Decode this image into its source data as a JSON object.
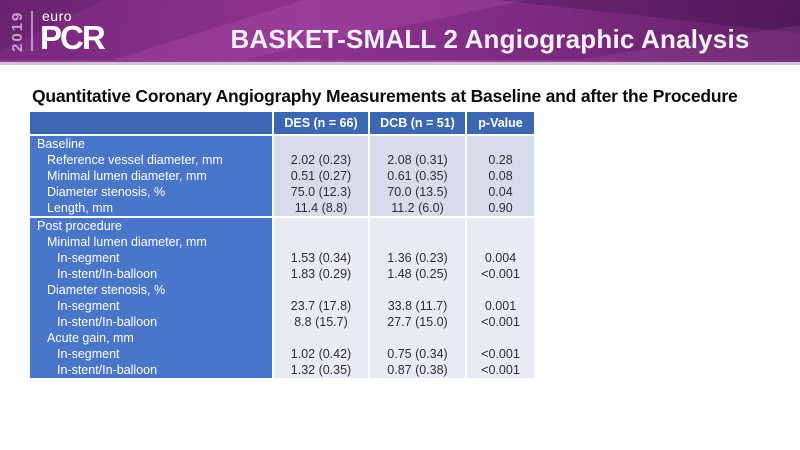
{
  "banner": {
    "year": "2019",
    "logo_top": "euro",
    "logo_main": "PCR",
    "title": "BASKET-SMALL 2 Angiographic Analysis"
  },
  "subtitle": "Quantitative Coronary Angiography Measurements at Baseline and after the Procedure",
  "colors": {
    "banner_purple": "#7c2b81",
    "banner_dark_purple": "#5f1f64",
    "header_blue": "#3c68b2",
    "label_column_blue": "#4976c9",
    "band_baseline": "#d8dbea",
    "band_post": "#e9ebf4"
  },
  "table": {
    "columns": [
      "",
      "DES (n = 66)",
      "DCB (n = 51)",
      "p-Value"
    ],
    "rows": [
      {
        "label": "Baseline",
        "indent": 0,
        "band": "a",
        "divider": false,
        "values": [
          "",
          "",
          ""
        ]
      },
      {
        "label": "Reference vessel diameter, mm",
        "indent": 1,
        "band": "a",
        "divider": false,
        "values": [
          "2.02 (0.23)",
          "2.08 (0.31)",
          "0.28"
        ]
      },
      {
        "label": "Minimal lumen diameter, mm",
        "indent": 1,
        "band": "a",
        "divider": false,
        "values": [
          "0.51 (0.27)",
          "0.61 (0.35)",
          "0.08"
        ]
      },
      {
        "label": "Diameter stenosis, %",
        "indent": 1,
        "band": "a",
        "divider": false,
        "values": [
          "75.0 (12.3)",
          "70.0 (13.5)",
          "0.04"
        ]
      },
      {
        "label": "Length, mm",
        "indent": 1,
        "band": "a",
        "divider": false,
        "values": [
          "11.4 (8.8)",
          "11.2 (6.0)",
          "0.90"
        ]
      },
      {
        "label": "Post procedure",
        "indent": 0,
        "band": "b",
        "divider": true,
        "values": [
          "",
          "",
          ""
        ]
      },
      {
        "label": "Minimal lumen diameter, mm",
        "indent": 1,
        "band": "b",
        "divider": false,
        "values": [
          "",
          "",
          ""
        ]
      },
      {
        "label": "In-segment",
        "indent": 2,
        "band": "b",
        "divider": false,
        "values": [
          "1.53 (0.34)",
          "1.36 (0.23)",
          "0.004"
        ]
      },
      {
        "label": "In-stent/In-balloon",
        "indent": 2,
        "band": "b",
        "divider": false,
        "values": [
          "1.83 (0.29)",
          "1.48 (0.25)",
          "<0.001"
        ]
      },
      {
        "label": "Diameter stenosis, %",
        "indent": 1,
        "band": "b",
        "divider": false,
        "values": [
          "",
          "",
          ""
        ]
      },
      {
        "label": "In-segment",
        "indent": 2,
        "band": "b",
        "divider": false,
        "values": [
          "23.7 (17.8)",
          "33.8 (11.7)",
          "0.001"
        ]
      },
      {
        "label": "In-stent/In-balloon",
        "indent": 2,
        "band": "b",
        "divider": false,
        "values": [
          "8.8 (15.7)",
          "27.7 (15.0)",
          "<0.001"
        ]
      },
      {
        "label": "Acute gain, mm",
        "indent": 1,
        "band": "b",
        "divider": false,
        "values": [
          "",
          "",
          ""
        ]
      },
      {
        "label": "In-segment",
        "indent": 2,
        "band": "b",
        "divider": false,
        "values": [
          "1.02 (0.42)",
          "0.75 (0.34)",
          "<0.001"
        ]
      },
      {
        "label": "In-stent/In-balloon",
        "indent": 2,
        "band": "b",
        "divider": false,
        "values": [
          "1.32 (0.35)",
          "0.87 (0.38)",
          "<0.001"
        ]
      }
    ]
  }
}
